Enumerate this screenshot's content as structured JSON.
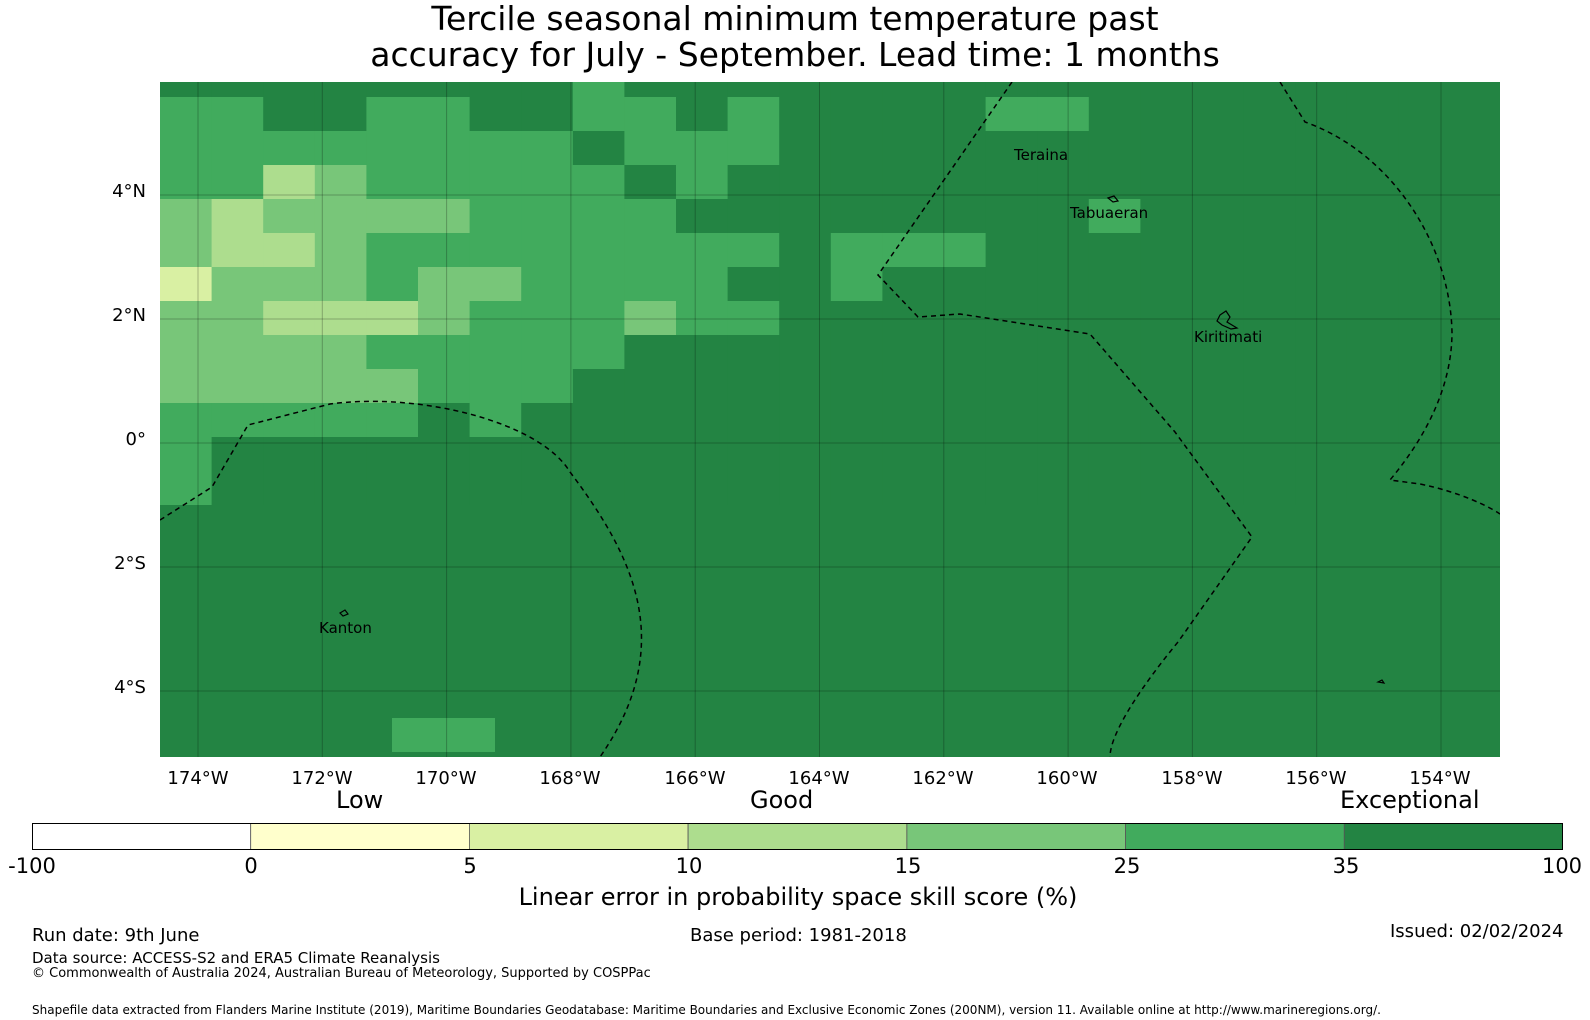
{
  "title": {
    "line1": "Tercile seasonal minimum temperature past",
    "line2": "accuracy for July - September. Lead time: 1 months"
  },
  "map": {
    "lat_ticks": [
      "4°N",
      "2°N",
      "0°",
      "2°S",
      "4°S"
    ],
    "lon_ticks": [
      "174°W",
      "172°W",
      "170°W",
      "168°W",
      "166°W",
      "164°W",
      "162°W",
      "160°W",
      "158°W",
      "156°W",
      "154°W"
    ],
    "places": {
      "teraina": "Teraina",
      "tabuaeran": "Tabuaeran",
      "kiritimati": "Kiritimati",
      "kanton": "Kanton"
    },
    "grid_values": [
      [
        35,
        35,
        35,
        35,
        35,
        35,
        35,
        35,
        25,
        35,
        35,
        35,
        35,
        35,
        35,
        35,
        35,
        35,
        35,
        35,
        35,
        35,
        35,
        35,
        35,
        35
      ],
      [
        25,
        25,
        35,
        35,
        25,
        25,
        35,
        35,
        25,
        25,
        35,
        25,
        35,
        35,
        35,
        35,
        25,
        25,
        35,
        35,
        35,
        35,
        35,
        35,
        35,
        35
      ],
      [
        25,
        25,
        25,
        25,
        25,
        25,
        25,
        25,
        35,
        25,
        25,
        25,
        35,
        35,
        35,
        35,
        35,
        35,
        35,
        35,
        35,
        35,
        35,
        35,
        35,
        35
      ],
      [
        25,
        25,
        10,
        15,
        25,
        25,
        25,
        25,
        25,
        35,
        25,
        35,
        35,
        35,
        35,
        35,
        35,
        35,
        35,
        35,
        35,
        35,
        35,
        35,
        35,
        35
      ],
      [
        15,
        10,
        15,
        15,
        15,
        15,
        25,
        25,
        25,
        25,
        35,
        35,
        35,
        35,
        35,
        35,
        35,
        35,
        25,
        35,
        35,
        35,
        35,
        35,
        35,
        35
      ],
      [
        15,
        10,
        10,
        15,
        25,
        25,
        25,
        25,
        25,
        25,
        25,
        25,
        35,
        25,
        25,
        25,
        35,
        35,
        35,
        35,
        35,
        35,
        35,
        35,
        35,
        35
      ],
      [
        5,
        15,
        15,
        15,
        25,
        15,
        15,
        25,
        25,
        25,
        25,
        35,
        35,
        25,
        35,
        35,
        35,
        35,
        35,
        35,
        35,
        35,
        35,
        35,
        35,
        35
      ],
      [
        15,
        15,
        10,
        10,
        10,
        15,
        25,
        25,
        25,
        15,
        25,
        25,
        35,
        35,
        35,
        35,
        35,
        35,
        35,
        35,
        35,
        35,
        35,
        35,
        35,
        35
      ],
      [
        15,
        15,
        15,
        15,
        25,
        25,
        25,
        25,
        25,
        35,
        35,
        35,
        35,
        35,
        35,
        35,
        35,
        35,
        35,
        35,
        35,
        35,
        35,
        35,
        35,
        35
      ],
      [
        15,
        15,
        15,
        15,
        15,
        25,
        25,
        25,
        35,
        35,
        35,
        35,
        35,
        35,
        35,
        35,
        35,
        35,
        35,
        35,
        35,
        35,
        35,
        35,
        35,
        35
      ],
      [
        25,
        25,
        25,
        25,
        25,
        35,
        25,
        35,
        35,
        35,
        35,
        35,
        35,
        35,
        35,
        35,
        35,
        35,
        35,
        35,
        35,
        35,
        35,
        35,
        35,
        35
      ],
      [
        25,
        35,
        35,
        35,
        35,
        35,
        35,
        35,
        35,
        35,
        35,
        35,
        35,
        35,
        35,
        35,
        35,
        35,
        35,
        35,
        35,
        35,
        35,
        35,
        35,
        35
      ],
      [
        25,
        35,
        35,
        35,
        35,
        35,
        35,
        35,
        35,
        35,
        35,
        35,
        35,
        35,
        35,
        35,
        35,
        35,
        35,
        35,
        35,
        35,
        35,
        35,
        35,
        35
      ]
    ],
    "bottom_patch_value": 25
  },
  "colorbar": {
    "category_labels": {
      "low": "Low",
      "good": "Good",
      "exceptional": "Exceptional"
    },
    "bins": [
      {
        "from": -100,
        "to": 0,
        "color": "#ffffff"
      },
      {
        "from": 0,
        "to": 5,
        "color": "#ffffcc"
      },
      {
        "from": 5,
        "to": 10,
        "color": "#d9f0a3"
      },
      {
        "from": 10,
        "to": 15,
        "color": "#addd8e"
      },
      {
        "from": 15,
        "to": 25,
        "color": "#78c679"
      },
      {
        "from": 25,
        "to": 35,
        "color": "#41ab5d"
      },
      {
        "from": 35,
        "to": 100,
        "color": "#238443"
      }
    ],
    "tick_labels": [
      "-100",
      "0",
      "5",
      "10",
      "15",
      "25",
      "35",
      "100"
    ],
    "label": "Linear error in probability space skill score (%)"
  },
  "footer": {
    "run_date": "Run date: 9th June",
    "base_period": "Base period: 1981-2018",
    "issued": "Issued: 02/02/2024",
    "data_source": "Data source: ACCESS-S2 and ERA5 Climate Reanalysis",
    "copyright": "© Commonwealth of Australia 2024, Australian Bureau of Meteorology, Supported by COSPPac",
    "shapefile": "Shapefile data extracted from Flanders Marine Institute (2019), Maritime Boundaries Geodatabase: Maritime Boundaries and Exclusive Economic Zones (200NM), version 11. Available online at http://www.marineregions.org/."
  }
}
